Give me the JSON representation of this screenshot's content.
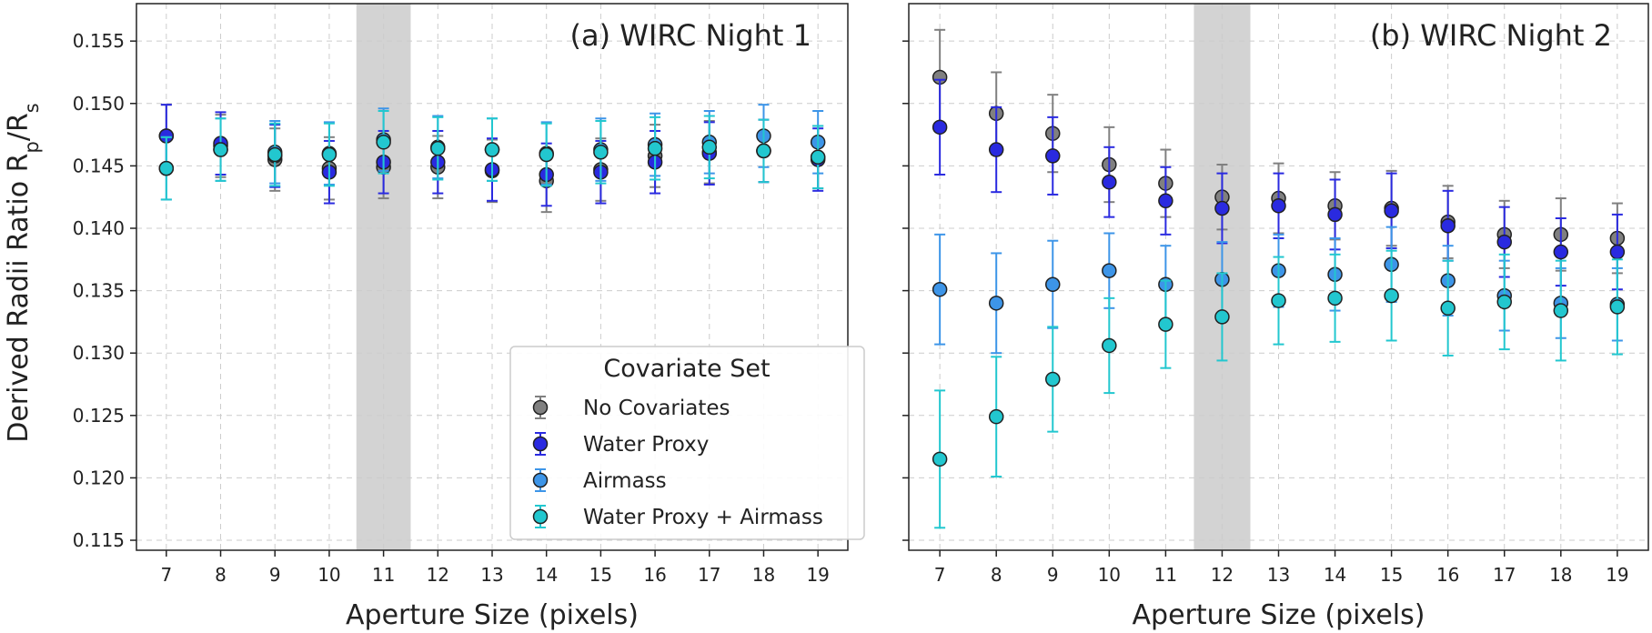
{
  "chart_data": [
    {
      "type": "scatter",
      "title": "(a) WIRC Night 1",
      "xlabel": "Aperture Size (pixels)",
      "ylabel": "Derived Radii Ratio R_p/R_s",
      "x": [
        7,
        8,
        9,
        10,
        11,
        12,
        13,
        14,
        15,
        16,
        17,
        18,
        19
      ],
      "xlim": [
        6.45,
        19.55
      ],
      "ylim": [
        0.1142,
        0.158
      ],
      "yticks": [
        "0.115",
        "0.120",
        "0.125",
        "0.130",
        "0.135",
        "0.140",
        "0.145",
        "0.150",
        "0.155"
      ],
      "highlight": [
        10.5,
        11.5
      ],
      "grid": true,
      "legend_title": "Covariate Set",
      "legend_position": "lower-right",
      "series": [
        {
          "name": "No Covariates",
          "color": "#808080",
          "values": [
            0.1474,
            0.1466,
            0.1455,
            0.1448,
            0.1449,
            0.1449,
            0.1446,
            0.1438,
            0.1447,
            0.1458,
            0.1461,
            0.1462,
            0.1457
          ],
          "err": [
            0.0025,
            0.0025,
            0.0025,
            0.0025,
            0.0025,
            0.0025,
            0.0025,
            0.0025,
            0.0025,
            0.0025,
            0.0025,
            0.0025,
            0.0025
          ]
        },
        {
          "name": "Water Proxy",
          "color": "#2a2ae0",
          "values": [
            0.1474,
            0.1468,
            0.1458,
            0.1445,
            0.1453,
            0.1453,
            0.1447,
            0.1443,
            0.1445,
            0.1453,
            0.146,
            0.1462,
            0.1455
          ],
          "err": [
            0.0025,
            0.0025,
            0.0025,
            0.0025,
            0.0025,
            0.0025,
            0.0025,
            0.0025,
            0.0025,
            0.0025,
            0.0025,
            0.0025,
            0.0025
          ]
        },
        {
          "name": "Airmass",
          "color": "#3d95e8",
          "values": [
            0.1448,
            0.1463,
            0.1461,
            0.146,
            0.1471,
            0.1465,
            0.1463,
            0.146,
            0.1463,
            0.1467,
            0.1469,
            0.1474,
            0.1469
          ],
          "err": [
            0.0025,
            0.0025,
            0.0025,
            0.0025,
            0.0025,
            0.0025,
            0.0025,
            0.0025,
            0.0025,
            0.0025,
            0.0025,
            0.0025,
            0.0025
          ]
        },
        {
          "name": "Water Proxy + Airmass",
          "color": "#22c7cf",
          "values": [
            0.1448,
            0.1463,
            0.1459,
            0.1459,
            0.1469,
            0.1464,
            0.1463,
            0.1459,
            0.1461,
            0.1464,
            0.1465,
            0.1462,
            0.1457
          ],
          "err": [
            0.0025,
            0.0025,
            0.0025,
            0.0025,
            0.0025,
            0.0025,
            0.0025,
            0.0025,
            0.0025,
            0.0025,
            0.0025,
            0.0025,
            0.0025
          ]
        }
      ]
    },
    {
      "type": "scatter",
      "title": "(b) WIRC Night 2",
      "xlabel": "Aperture Size (pixels)",
      "x": [
        7,
        8,
        9,
        10,
        11,
        12,
        13,
        14,
        15,
        16,
        17,
        18,
        19
      ],
      "xlim": [
        6.45,
        19.55
      ],
      "ylim": [
        0.1142,
        0.158
      ],
      "highlight": [
        11.5,
        12.5
      ],
      "grid": true,
      "series": [
        {
          "name": "No Covariates",
          "color": "#808080",
          "values": [
            0.1521,
            0.1492,
            0.1476,
            0.1451,
            0.1436,
            0.1425,
            0.1424,
            0.1418,
            0.1416,
            0.1405,
            0.1395,
            0.1395,
            0.1392
          ],
          "err": [
            0.0038,
            0.0033,
            0.0031,
            0.003,
            0.0027,
            0.0026,
            0.0028,
            0.0027,
            0.003,
            0.0029,
            0.0027,
            0.0029,
            0.0028
          ]
        },
        {
          "name": "Water Proxy",
          "color": "#2a2ae0",
          "values": [
            0.1481,
            0.1463,
            0.1458,
            0.1437,
            0.1422,
            0.1416,
            0.1418,
            0.1411,
            0.1414,
            0.1402,
            0.1389,
            0.1381,
            0.1381
          ],
          "err": [
            0.0038,
            0.0034,
            0.0031,
            0.0028,
            0.0027,
            0.0028,
            0.0026,
            0.0028,
            0.003,
            0.0028,
            0.0028,
            0.0027,
            0.003
          ]
        },
        {
          "name": "Airmass",
          "color": "#3d95e8",
          "values": [
            0.1351,
            0.134,
            0.1355,
            0.1366,
            0.1355,
            0.1359,
            0.1366,
            0.1363,
            0.1371,
            0.1358,
            0.1346,
            0.134,
            0.1339
          ],
          "err": [
            0.0044,
            0.004,
            0.0035,
            0.003,
            0.0031,
            0.003,
            0.0029,
            0.0029,
            0.003,
            0.0028,
            0.0028,
            0.0028,
            0.0029
          ]
        },
        {
          "name": "Water Proxy + Airmass",
          "color": "#22c7cf",
          "values": [
            0.1215,
            0.1249,
            0.1279,
            0.1306,
            0.1323,
            0.1329,
            0.1342,
            0.1344,
            0.1346,
            0.1336,
            0.1341,
            0.1334,
            0.1337
          ],
          "err": [
            0.0055,
            0.0048,
            0.0042,
            0.0038,
            0.0035,
            0.0035,
            0.0035,
            0.0035,
            0.0036,
            0.0038,
            0.0038,
            0.004,
            0.0038
          ]
        }
      ]
    }
  ]
}
